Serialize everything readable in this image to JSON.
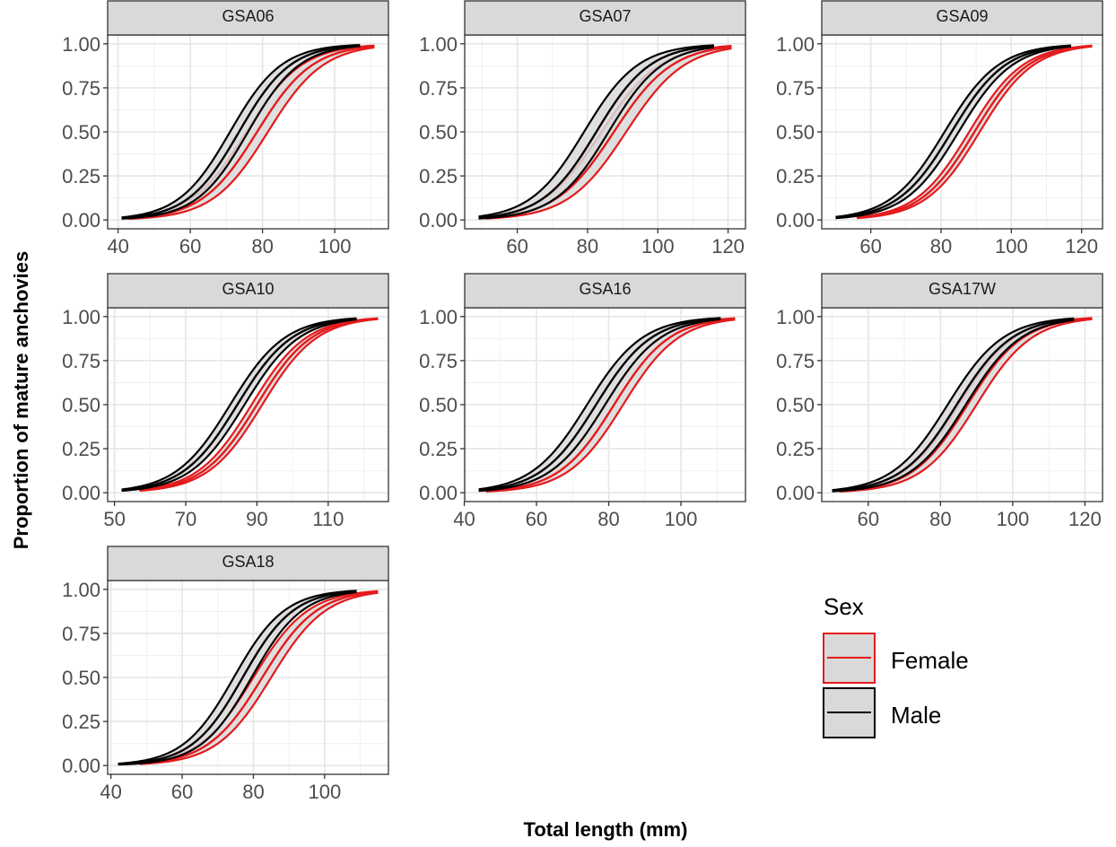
{
  "chart_data": {
    "type": "line",
    "xlabel": "Total length (mm)",
    "ylabel": "Proportion of mature anchovies",
    "y_ticks": [
      "0.00",
      "0.25",
      "0.50",
      "0.75",
      "1.00"
    ],
    "ylim": [
      0,
      1
    ],
    "grid": true,
    "legend": {
      "title": "Sex",
      "placement": "bottom-right",
      "entries": [
        {
          "label": "Female",
          "color": "#e41a1c",
          "fill": "#d9d9d9"
        },
        {
          "label": "Male",
          "color": "#000000",
          "fill": "#d9d9d9"
        }
      ]
    },
    "panels": [
      {
        "strip": "GSA06",
        "xlim": [
          40,
          112
        ],
        "x_ticks": [
          "40",
          "60",
          "80",
          "100"
        ],
        "series": [
          {
            "name": "Female",
            "x_range": [
              43,
              111
            ],
            "l50": [
              75.5,
              78.5,
              81.5
            ],
            "slope": 0.13
          },
          {
            "name": "Male",
            "x_range": [
              41,
              107
            ],
            "l50": [
              71,
              73.5,
              76
            ],
            "slope": 0.14
          }
        ]
      },
      {
        "strip": "GSA07",
        "xlim": [
          48,
          122
        ],
        "x_ticks": [
          "60",
          "80",
          "100",
          "120"
        ],
        "series": [
          {
            "name": "Female",
            "x_range": [
              51,
              121
            ],
            "l50": [
              84,
              87.5,
              91
            ],
            "slope": 0.12
          },
          {
            "name": "Male",
            "x_range": [
              49,
              116
            ],
            "l50": [
              79,
              82.5,
              86
            ],
            "slope": 0.13
          }
        ]
      },
      {
        "strip": "GSA09",
        "xlim": [
          49,
          123
        ],
        "x_ticks": [
          "60",
          "80",
          "100",
          "120"
        ],
        "series": [
          {
            "name": "Female",
            "x_range": [
              56,
              123
            ],
            "l50": [
              88,
              89.5,
              91
            ],
            "slope": 0.13
          },
          {
            "name": "Male",
            "x_range": [
              50,
              117
            ],
            "l50": [
              81,
              83,
              85
            ],
            "slope": 0.13
          }
        ]
      },
      {
        "strip": "GSA10",
        "xlim": [
          51,
          124
        ],
        "x_ticks": [
          "50",
          "70",
          "90",
          "110"
        ],
        "series": [
          {
            "name": "Female",
            "x_range": [
              57,
              124
            ],
            "l50": [
              88.5,
              90,
              91.5
            ],
            "slope": 0.13
          },
          {
            "name": "Male",
            "x_range": [
              52,
              118
            ],
            "l50": [
              82.5,
              84.5,
              86.5
            ],
            "slope": 0.13
          }
        ]
      },
      {
        "strip": "GSA16",
        "xlim": [
          43,
          115
        ],
        "x_ticks": [
          "40",
          "60",
          "80",
          "100"
        ],
        "series": [
          {
            "name": "Female",
            "x_range": [
              46,
              115
            ],
            "l50": [
              79,
              81.5,
              84
            ],
            "slope": 0.13
          },
          {
            "name": "Male",
            "x_range": [
              44,
              111
            ],
            "l50": [
              74,
              76.5,
              79
            ],
            "slope": 0.13
          }
        ]
      },
      {
        "strip": "GSA17W",
        "xlim": [
          50,
          122
        ],
        "x_ticks": [
          "60",
          "80",
          "100",
          "120"
        ],
        "series": [
          {
            "name": "Female",
            "x_range": [
              52,
              122
            ],
            "l50": [
              85,
              87.5,
              90
            ],
            "slope": 0.13
          },
          {
            "name": "Male",
            "x_range": [
              50,
              117
            ],
            "l50": [
              82,
              84.5,
              87
            ],
            "slope": 0.13
          }
        ]
      },
      {
        "strip": "GSA18",
        "xlim": [
          42,
          115
        ],
        "x_ticks": [
          "40",
          "60",
          "80",
          "100"
        ],
        "series": [
          {
            "name": "Female",
            "x_range": [
              48,
              115
            ],
            "l50": [
              80,
              82.5,
              85
            ],
            "slope": 0.13
          },
          {
            "name": "Male",
            "x_range": [
              42,
              109
            ],
            "l50": [
              74.5,
              77,
              79.5
            ],
            "slope": 0.14
          }
        ]
      }
    ]
  }
}
